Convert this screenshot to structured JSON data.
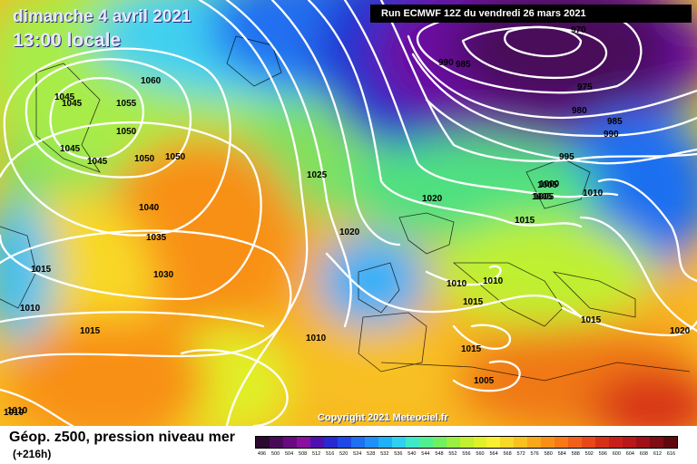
{
  "header": {
    "date": "dimanche 4 avril 2021",
    "time": "13:00 locale",
    "run": "Run ECMWF 12Z du vendredi 26 mars 2021"
  },
  "footer": {
    "copyright": "Copyright 2021 Meteociel.fr",
    "title": "Géop. z500, pression niveau mer",
    "lead": "(+216h)"
  },
  "scale": {
    "labels": [
      "496",
      "500",
      "504",
      "508",
      "512",
      "516",
      "520",
      "524",
      "528",
      "532",
      "536",
      "540",
      "544",
      "548",
      "552",
      "556",
      "560",
      "564",
      "568",
      "572",
      "576",
      "580",
      "584",
      "588",
      "592",
      "596",
      "600",
      "604",
      "608",
      "612",
      "616"
    ],
    "colors": [
      "#2a0a2e",
      "#4a0a5a",
      "#6a0a80",
      "#8a10a0",
      "#5010b0",
      "#2a28d0",
      "#1e48e8",
      "#1e70f0",
      "#2090f8",
      "#20b0f8",
      "#30d0f0",
      "#40e8c8",
      "#50f090",
      "#70f060",
      "#98f040",
      "#c0f030",
      "#e0f028",
      "#f8f030",
      "#f8d828",
      "#f8c020",
      "#f8a818",
      "#f89018",
      "#f87818",
      "#f06018",
      "#e84818",
      "#d83018",
      "#c82018",
      "#b81818",
      "#a01018",
      "#800c14",
      "#600810"
    ]
  },
  "isobars": [
    "1060",
    "1055",
    "1045",
    "1045",
    "1050",
    "1045",
    "1045",
    "1050",
    "1050",
    "1040",
    "1035",
    "1030",
    "1025",
    "1020",
    "1015",
    "1010",
    "1020",
    "1015",
    "1010",
    "1010",
    "1015",
    "1010",
    "1015",
    "1005",
    "1005",
    "1010",
    "1005",
    "1015",
    "1020",
    "970",
    "990",
    "985",
    "975",
    "980",
    "985",
    "990",
    "995",
    "1000",
    "1005",
    "1010",
    "1010",
    "1015"
  ]
}
